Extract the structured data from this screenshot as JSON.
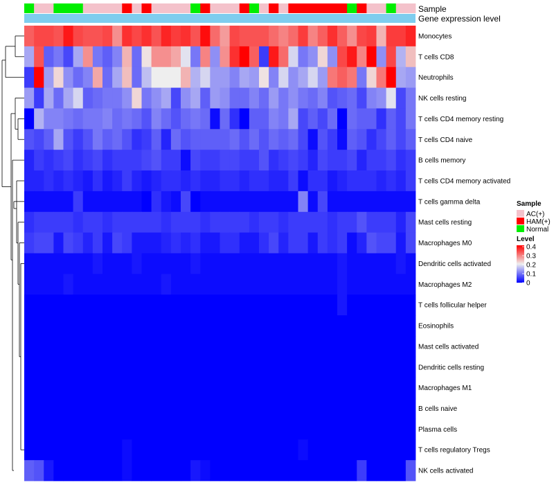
{
  "chart_data": {
    "type": "heatmap",
    "title": "",
    "annotations": {
      "sample_label": "Sample",
      "expression_label": "Gene expression level",
      "sample_colors": {
        "AC(+)": "#f4c2cb",
        "HAM(+)": "#ff0000",
        "Normal": "#00ee00"
      },
      "expression_color": "#7ecdee",
      "samples": [
        "Normal",
        "AC(+)",
        "AC(+)",
        "Normal",
        "Normal",
        "Normal",
        "AC(+)",
        "AC(+)",
        "AC(+)",
        "AC(+)",
        "HAM(+)",
        "AC(+)",
        "HAM(+)",
        "AC(+)",
        "AC(+)",
        "AC(+)",
        "AC(+)",
        "Normal",
        "HAM(+)",
        "AC(+)",
        "AC(+)",
        "AC(+)",
        "HAM(+)",
        "Normal",
        "AC(+)",
        "HAM(+)",
        "AC(+)",
        "HAM(+)",
        "HAM(+)",
        "HAM(+)",
        "HAM(+)",
        "HAM(+)",
        "HAM(+)",
        "Normal",
        "HAM(+)",
        "AC(+)",
        "AC(+)",
        "Normal",
        "AC(+)",
        "AC(+)"
      ]
    },
    "rows": [
      "Monocytes",
      "T cells CD8",
      "Neutrophils",
      "NK cells resting",
      "T cells CD4 memory resting",
      "T cells CD4 naive",
      "B cells memory",
      "T cells CD4 memory activated",
      "T cells gamma delta",
      "Mast cells resting",
      "Macrophages M0",
      "Dendritic cells activated",
      "Macrophages M2",
      "T cells follicular helper",
      "Eosinophils",
      "Mast cells activated",
      "Dendritic cells resting",
      "Macrophages M1",
      "B cells naive",
      "Plasma cells",
      "T cells regulatory  Tregs",
      "NK cells activated"
    ],
    "values": [
      [
        0.32,
        0.34,
        0.34,
        0.33,
        0.38,
        0.34,
        0.33,
        0.33,
        0.34,
        0.28,
        0.36,
        0.34,
        0.36,
        0.33,
        0.37,
        0.35,
        0.36,
        0.33,
        0.39,
        0.31,
        0.27,
        0.34,
        0.33,
        0.33,
        0.33,
        0.31,
        0.29,
        0.31,
        0.35,
        0.29,
        0.32,
        0.36,
        0.32,
        0.28,
        0.34,
        0.35,
        0.25,
        0.35,
        0.35,
        0.37
      ],
      [
        0.14,
        0.33,
        0.08,
        0.1,
        0.06,
        0.14,
        0.28,
        0.1,
        0.08,
        0.11,
        0.25,
        0.09,
        0.21,
        0.28,
        0.28,
        0.26,
        0.19,
        0.1,
        0.29,
        0.12,
        0.28,
        0.36,
        0.4,
        0.32,
        0.05,
        0.38,
        0.31,
        0.18,
        0.1,
        0.12,
        0.22,
        0.12,
        0.34,
        0.38,
        0.29,
        0.4,
        0.12,
        0.34,
        0.15,
        0.24
      ],
      [
        0.05,
        0.4,
        0.13,
        0.22,
        0.12,
        0.09,
        0.11,
        0.26,
        0.09,
        0.14,
        0.24,
        0.09,
        0.16,
        0.2,
        0.2,
        0.2,
        0.25,
        0.15,
        0.18,
        0.13,
        0.13,
        0.11,
        0.14,
        0.13,
        0.21,
        0.11,
        0.18,
        0.12,
        0.14,
        0.18,
        0.13,
        0.3,
        0.32,
        0.3,
        0.1,
        0.22,
        0.3,
        0.4,
        0.14,
        0.13
      ],
      [
        0.13,
        0.05,
        0.14,
        0.09,
        0.14,
        0.18,
        0.08,
        0.09,
        0.1,
        0.1,
        0.12,
        0.22,
        0.1,
        0.12,
        0.14,
        0.06,
        0.12,
        0.14,
        0.08,
        0.13,
        0.12,
        0.09,
        0.09,
        0.11,
        0.09,
        0.13,
        0.1,
        0.12,
        0.1,
        0.09,
        0.11,
        0.07,
        0.08,
        0.09,
        0.06,
        0.11,
        0.12,
        0.19,
        0.06,
        0.1
      ],
      [
        0.0,
        0.15,
        0.11,
        0.11,
        0.1,
        0.09,
        0.1,
        0.1,
        0.11,
        0.09,
        0.1,
        0.09,
        0.07,
        0.11,
        0.09,
        0.07,
        0.09,
        0.1,
        0.09,
        0.01,
        0.09,
        0.04,
        0.0,
        0.08,
        0.08,
        0.11,
        0.1,
        0.14,
        0.06,
        0.08,
        0.06,
        0.09,
        0.0,
        0.09,
        0.08,
        0.08,
        0.04,
        0.08,
        0.06,
        0.1
      ],
      [
        0.07,
        0.06,
        0.08,
        0.14,
        0.07,
        0.05,
        0.07,
        0.1,
        0.08,
        0.09,
        0.07,
        0.04,
        0.05,
        0.08,
        0.03,
        0.09,
        0.07,
        0.08,
        0.08,
        0.08,
        0.08,
        0.09,
        0.07,
        0.09,
        0.07,
        0.09,
        0.08,
        0.09,
        0.06,
        0.01,
        0.07,
        0.05,
        0.01,
        0.08,
        0.07,
        0.04,
        0.06,
        0.08,
        0.06,
        0.08
      ],
      [
        0.03,
        0.05,
        0.04,
        0.05,
        0.06,
        0.04,
        0.05,
        0.06,
        0.04,
        0.05,
        0.05,
        0.05,
        0.06,
        0.07,
        0.05,
        0.05,
        0.01,
        0.06,
        0.05,
        0.05,
        0.06,
        0.06,
        0.05,
        0.05,
        0.07,
        0.04,
        0.05,
        0.06,
        0.05,
        0.03,
        0.06,
        0.05,
        0.05,
        0.06,
        0.03,
        0.05,
        0.05,
        0.06,
        0.04,
        0.05
      ],
      [
        0.03,
        0.03,
        0.04,
        0.03,
        0.04,
        0.03,
        0.02,
        0.04,
        0.02,
        0.03,
        0.05,
        0.03,
        0.02,
        0.03,
        0.04,
        0.04,
        0.03,
        0.04,
        0.03,
        0.03,
        0.04,
        0.04,
        0.03,
        0.04,
        0.04,
        0.03,
        0.03,
        0.05,
        0.01,
        0.04,
        0.04,
        0.02,
        0.03,
        0.04,
        0.04,
        0.04,
        0.03,
        0.04,
        0.03,
        0.05
      ],
      [
        0.01,
        0.01,
        0.01,
        0.01,
        0.01,
        0.05,
        0.01,
        0.01,
        0.01,
        0.01,
        0.01,
        0.01,
        0.0,
        0.04,
        0.02,
        0.01,
        0.06,
        0.0,
        0.01,
        0.01,
        0.01,
        0.01,
        0.01,
        0.01,
        0.01,
        0.01,
        0.01,
        0.01,
        0.11,
        0.01,
        0.06,
        0.01,
        0.01,
        0.01,
        0.01,
        0.01,
        0.01,
        0.01,
        0.01,
        0.01
      ],
      [
        0.04,
        0.05,
        0.05,
        0.05,
        0.05,
        0.04,
        0.05,
        0.05,
        0.04,
        0.05,
        0.05,
        0.05,
        0.05,
        0.05,
        0.04,
        0.05,
        0.05,
        0.05,
        0.04,
        0.05,
        0.05,
        0.05,
        0.05,
        0.04,
        0.05,
        0.05,
        0.04,
        0.05,
        0.05,
        0.05,
        0.05,
        0.04,
        0.05,
        0.05,
        0.07,
        0.05,
        0.05,
        0.05,
        0.03,
        0.06
      ],
      [
        0.05,
        0.06,
        0.06,
        0.02,
        0.06,
        0.05,
        0.03,
        0.05,
        0.02,
        0.06,
        0.05,
        0.02,
        0.02,
        0.02,
        0.03,
        0.04,
        0.03,
        0.04,
        0.02,
        0.02,
        0.04,
        0.04,
        0.02,
        0.02,
        0.04,
        0.06,
        0.03,
        0.05,
        0.05,
        0.02,
        0.05,
        0.04,
        0.05,
        0.01,
        0.03,
        0.07,
        0.06,
        0.06,
        0.02,
        0.06
      ],
      [
        0.01,
        0.01,
        0.01,
        0.01,
        0.01,
        0.01,
        0.01,
        0.02,
        0.01,
        0.01,
        0.01,
        0.02,
        0.01,
        0.01,
        0.01,
        0.01,
        0.01,
        0.02,
        0.01,
        0.01,
        0.01,
        0.01,
        0.01,
        0.01,
        0.01,
        0.01,
        0.01,
        0.01,
        0.01,
        0.01,
        0.01,
        0.01,
        0.02,
        0.01,
        0.01,
        0.01,
        0.01,
        0.01,
        0.02,
        0.01
      ],
      [
        0.01,
        0.01,
        0.01,
        0.01,
        0.02,
        0.01,
        0.01,
        0.01,
        0.01,
        0.01,
        0.01,
        0.01,
        0.01,
        0.01,
        0.02,
        0.01,
        0.01,
        0.01,
        0.01,
        0.01,
        0.01,
        0.01,
        0.01,
        0.01,
        0.01,
        0.01,
        0.01,
        0.01,
        0.01,
        0.01,
        0.01,
        0.01,
        0.02,
        0.01,
        0.01,
        0.01,
        0.01,
        0.01,
        0.01,
        0.01
      ],
      [
        0.0,
        0.0,
        0.0,
        0.0,
        0.0,
        0.0,
        0.0,
        0.0,
        0.0,
        0.0,
        0.0,
        0.0,
        0.0,
        0.0,
        0.0,
        0.0,
        0.0,
        0.0,
        0.0,
        0.0,
        0.0,
        0.0,
        0.0,
        0.0,
        0.0,
        0.0,
        0.0,
        0.0,
        0.0,
        0.0,
        0.0,
        0.0,
        0.02,
        0.0,
        0.0,
        0.0,
        0.0,
        0.0,
        0.0,
        0.0
      ],
      [
        0.0,
        0.0,
        0.0,
        0.0,
        0.0,
        0.0,
        0.0,
        0.0,
        0.0,
        0.0,
        0.0,
        0.0,
        0.0,
        0.0,
        0.0,
        0.0,
        0.0,
        0.0,
        0.0,
        0.0,
        0.0,
        0.0,
        0.0,
        0.0,
        0.0,
        0.0,
        0.0,
        0.0,
        0.0,
        0.0,
        0.0,
        0.0,
        0.0,
        0.0,
        0.0,
        0.0,
        0.0,
        0.0,
        0.0,
        0.0
      ],
      [
        0.0,
        0.0,
        0.0,
        0.0,
        0.0,
        0.0,
        0.0,
        0.0,
        0.0,
        0.0,
        0.0,
        0.0,
        0.0,
        0.0,
        0.0,
        0.0,
        0.0,
        0.0,
        0.0,
        0.0,
        0.0,
        0.0,
        0.0,
        0.0,
        0.0,
        0.0,
        0.0,
        0.0,
        0.0,
        0.0,
        0.0,
        0.0,
        0.0,
        0.0,
        0.0,
        0.0,
        0.0,
        0.0,
        0.0,
        0.0
      ],
      [
        0.0,
        0.0,
        0.0,
        0.0,
        0.0,
        0.0,
        0.0,
        0.0,
        0.0,
        0.0,
        0.0,
        0.0,
        0.0,
        0.0,
        0.0,
        0.0,
        0.0,
        0.0,
        0.0,
        0.0,
        0.0,
        0.0,
        0.0,
        0.0,
        0.0,
        0.0,
        0.0,
        0.0,
        0.0,
        0.0,
        0.0,
        0.0,
        0.0,
        0.0,
        0.0,
        0.0,
        0.0,
        0.0,
        0.0,
        0.0
      ],
      [
        0.0,
        0.0,
        0.0,
        0.0,
        0.0,
        0.0,
        0.0,
        0.0,
        0.0,
        0.0,
        0.0,
        0.0,
        0.0,
        0.0,
        0.0,
        0.0,
        0.0,
        0.0,
        0.0,
        0.0,
        0.0,
        0.0,
        0.0,
        0.0,
        0.0,
        0.0,
        0.0,
        0.0,
        0.0,
        0.0,
        0.0,
        0.0,
        0.0,
        0.0,
        0.0,
        0.0,
        0.0,
        0.0,
        0.0,
        0.0
      ],
      [
        0.0,
        0.0,
        0.0,
        0.0,
        0.0,
        0.0,
        0.0,
        0.0,
        0.0,
        0.0,
        0.0,
        0.0,
        0.0,
        0.0,
        0.0,
        0.0,
        0.0,
        0.0,
        0.0,
        0.0,
        0.0,
        0.0,
        0.0,
        0.0,
        0.0,
        0.0,
        0.0,
        0.0,
        0.0,
        0.0,
        0.0,
        0.0,
        0.0,
        0.0,
        0.0,
        0.0,
        0.0,
        0.0,
        0.0,
        0.0
      ],
      [
        0.0,
        0.0,
        0.0,
        0.0,
        0.0,
        0.0,
        0.0,
        0.0,
        0.0,
        0.0,
        0.0,
        0.0,
        0.0,
        0.0,
        0.0,
        0.0,
        0.0,
        0.0,
        0.0,
        0.0,
        0.0,
        0.0,
        0.0,
        0.0,
        0.0,
        0.0,
        0.0,
        0.0,
        0.0,
        0.0,
        0.0,
        0.0,
        0.0,
        0.0,
        0.0,
        0.0,
        0.0,
        0.0,
        0.0,
        0.0
      ],
      [
        0.0,
        0.0,
        0.0,
        0.0,
        0.0,
        0.0,
        0.0,
        0.0,
        0.0,
        0.0,
        0.01,
        0.0,
        0.0,
        0.0,
        0.0,
        0.0,
        0.0,
        0.0,
        0.0,
        0.0,
        0.0,
        0.0,
        0.0,
        0.0,
        0.0,
        0.0,
        0.0,
        0.0,
        0.01,
        0.0,
        0.0,
        0.0,
        0.0,
        0.0,
        0.0,
        0.0,
        0.0,
        0.0,
        0.0,
        0.0
      ],
      [
        0.08,
        0.07,
        0.02,
        0.0,
        0.0,
        0.0,
        0.0,
        0.0,
        0.0,
        0.0,
        0.01,
        0.0,
        0.0,
        0.0,
        0.0,
        0.0,
        0.0,
        0.02,
        0.01,
        0.0,
        0.0,
        0.0,
        0.0,
        0.0,
        0.0,
        0.0,
        0.0,
        0.0,
        0.0,
        0.0,
        0.0,
        0.0,
        0.0,
        0.0,
        0.05,
        0.0,
        0.0,
        0.0,
        0.0,
        0.07
      ]
    ],
    "color_scale": {
      "low": "#0000ff",
      "mid": "#eeeeee",
      "high": "#ff0000",
      "range": [
        0,
        0.4
      ],
      "midpoint": 0.2
    },
    "legend": {
      "sample_title": "Sample",
      "sample_entries": [
        "AC(+)",
        "HAM(+)",
        "Normal"
      ],
      "level_title": "Level",
      "level_ticks": [
        "0.4",
        "0.3",
        "0.2",
        "0.1",
        "0"
      ]
    },
    "dendrogram": "row",
    "grid": false
  }
}
